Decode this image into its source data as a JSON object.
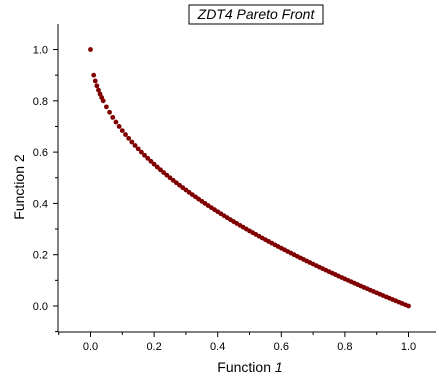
{
  "chart_data": {
    "type": "scatter",
    "title": "ZDT4 Pareto Front",
    "xlabel": {
      "prefix": "Function ",
      "italic": "1"
    },
    "ylabel": "Function 2",
    "xlim": [
      -0.1,
      1.1
    ],
    "ylim": [
      -0.1,
      1.1
    ],
    "xticks": [
      "0.0",
      "0.2",
      "0.4",
      "0.6",
      "0.8",
      "1.0"
    ],
    "yticks": [
      "0.0",
      "0.2",
      "0.4",
      "0.6",
      "0.8",
      "1.0"
    ],
    "marker_color": "#800000",
    "grid": false,
    "series": [
      {
        "x": [
          0,
          0.01,
          0.015,
          0.02,
          0.025,
          0.03,
          0.035,
          0.04,
          0.05,
          0.06,
          0.07,
          0.08,
          0.09,
          0.1,
          0.11,
          0.12,
          0.13,
          0.14,
          0.15,
          0.16,
          0.17,
          0.18,
          0.19,
          0.2,
          0.21,
          0.22,
          0.23,
          0.24,
          0.25,
          0.26,
          0.27,
          0.28,
          0.29,
          0.3,
          0.31,
          0.32,
          0.33,
          0.34,
          0.35,
          0.36,
          0.37,
          0.38,
          0.39,
          0.4,
          0.41,
          0.42,
          0.43,
          0.44,
          0.45,
          0.46,
          0.47,
          0.48,
          0.49,
          0.5,
          0.51,
          0.52,
          0.53,
          0.54,
          0.55,
          0.56,
          0.57,
          0.58,
          0.59,
          0.6,
          0.61,
          0.62,
          0.63,
          0.64,
          0.65,
          0.66,
          0.67,
          0.68,
          0.69,
          0.7,
          0.71,
          0.72,
          0.73,
          0.74,
          0.75,
          0.76,
          0.77,
          0.78,
          0.79,
          0.8,
          0.81,
          0.82,
          0.83,
          0.84,
          0.85,
          0.86,
          0.87,
          0.88,
          0.89,
          0.9,
          0.91,
          0.92,
          0.93,
          0.94,
          0.95,
          0.96,
          0.97,
          0.98,
          0.99,
          1.0
        ],
        "y": [
          1.0,
          0.9,
          0.8775,
          0.8586,
          0.8419,
          0.8268,
          0.8129,
          0.8,
          0.7764,
          0.7551,
          0.7354,
          0.7172,
          0.7,
          0.6838,
          0.6683,
          0.6536,
          0.6394,
          0.6258,
          0.6127,
          0.6,
          0.5877,
          0.5757,
          0.5641,
          0.5528,
          0.5417,
          0.531,
          0.5204,
          0.5101,
          0.5,
          0.4901,
          0.4804,
          0.4708,
          0.4615,
          0.4523,
          0.4432,
          0.4343,
          0.4255,
          0.4169,
          0.4084,
          0.4,
          0.3917,
          0.3836,
          0.3755,
          0.3675,
          0.3597,
          0.3519,
          0.3443,
          0.3367,
          0.3292,
          0.3218,
          0.3144,
          0.3072,
          0.3,
          0.2929,
          0.2859,
          0.2789,
          0.272,
          0.2652,
          0.2584,
          0.2517,
          0.245,
          0.2384,
          0.2319,
          0.2254,
          0.219,
          0.2126,
          0.2063,
          0.2,
          0.1938,
          0.1876,
          0.1815,
          0.1754,
          0.1693,
          0.1633,
          0.1574,
          0.1515,
          0.1456,
          0.1398,
          0.134,
          0.1282,
          0.1225,
          0.1168,
          0.1112,
          0.1056,
          0.1,
          0.0945,
          0.089,
          0.0835,
          0.078,
          0.0726,
          0.0673,
          0.0619,
          0.0566,
          0.0513,
          0.0461,
          0.0408,
          0.0356,
          0.0305,
          0.0253,
          0.0202,
          0.0151,
          0.0101,
          0.005,
          0.0
        ]
      }
    ]
  }
}
